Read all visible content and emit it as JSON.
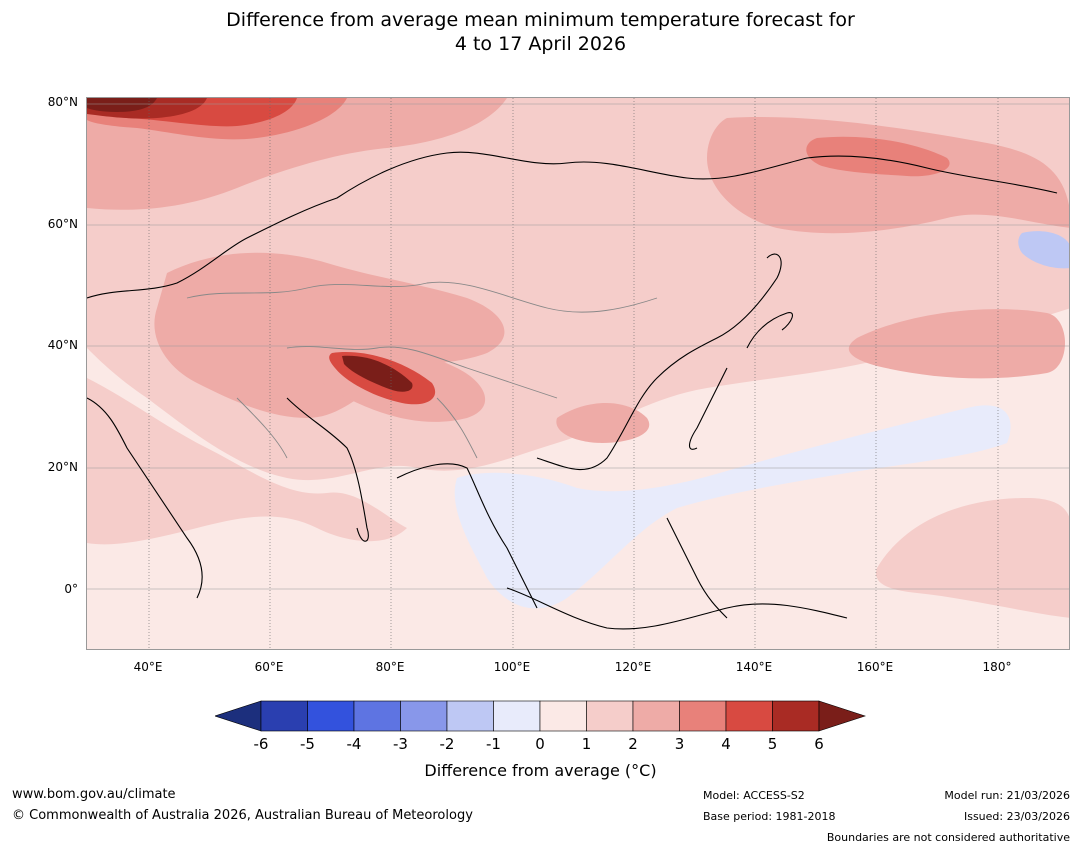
{
  "title_line1": "Difference from average mean minimum temperature forecast for",
  "title_line2": "4 to 17 April 2026",
  "lat_labels": [
    "80°N",
    "60°N",
    "40°N",
    "20°N",
    "0°"
  ],
  "lon_labels": [
    "40°E",
    "60°E",
    "80°E",
    "100°E",
    "120°E",
    "140°E",
    "160°E",
    "180°"
  ],
  "colorbar": {
    "ticks": [
      "-6",
      "-5",
      "-4",
      "-3",
      "-2",
      "-1",
      "0",
      "1",
      "2",
      "3",
      "4",
      "5",
      "6"
    ],
    "colors": [
      "#1c2f7d",
      "#2a3fb0",
      "#3352dd",
      "#5e74e2",
      "#8897ea",
      "#bec8f4",
      "#e8ebfb",
      "#fbe9e6",
      "#f5cdca",
      "#eeaba7",
      "#e8817a",
      "#d84a41",
      "#a92b24",
      "#7a1e19"
    ],
    "label": "Difference from average (°C)"
  },
  "footer": {
    "website": "www.bom.gov.au/climate",
    "copyright": "© Commonwealth of Australia 2026, Australian Bureau of Meteorology",
    "model": "Model: ACCESS-S2",
    "base_period": "Base period: 1981-2018",
    "model_run": "Model run: 21/03/2026",
    "issued": "Issued: 23/03/2026",
    "boundaries_note": "Boundaries are not considered authoritative"
  }
}
